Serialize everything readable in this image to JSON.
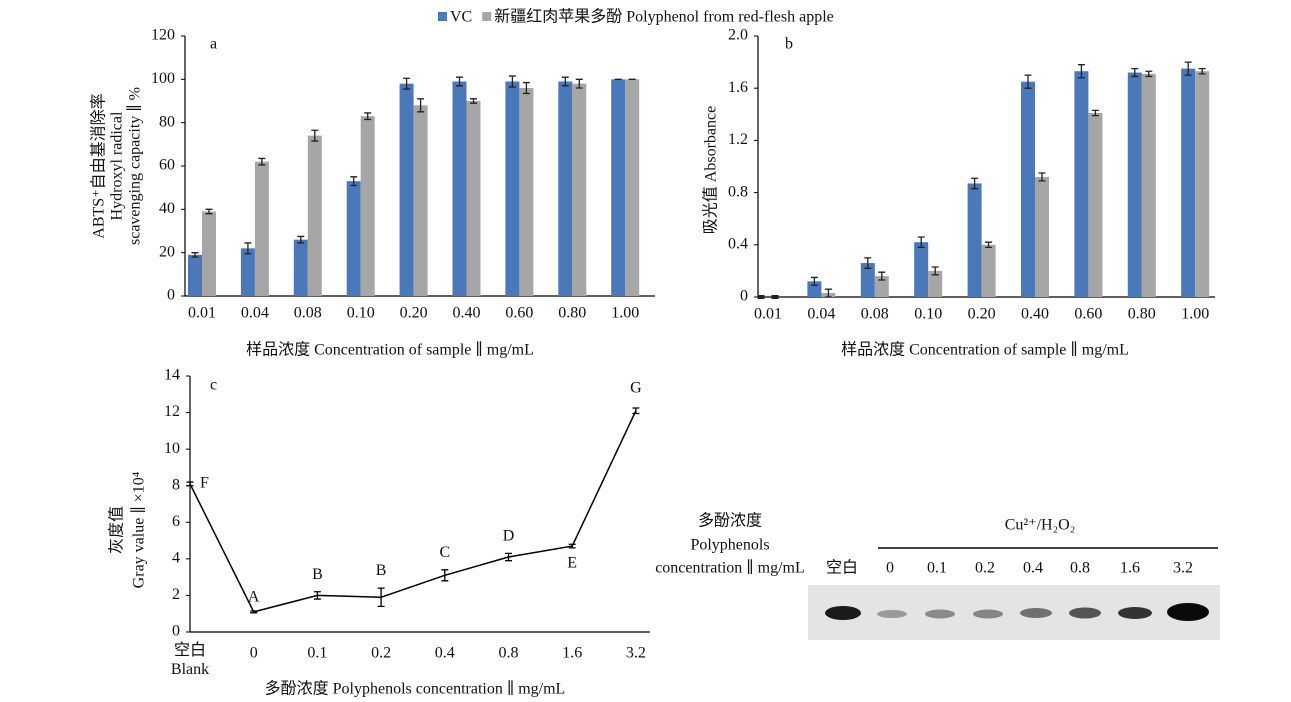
{
  "chart_data": [
    {
      "type": "bar",
      "label": "a",
      "ylabel_lines": [
        "ABTS⁺自由基消除率",
        "Hydroxyl radical",
        "scavenging capacity ∥ %"
      ],
      "xlabel": "样品浓度 Concentration of sample ∥ mg/mL",
      "categories": [
        "0.01",
        "0.04",
        "0.08",
        "0.10",
        "0.20",
        "0.40",
        "0.60",
        "0.80",
        "1.00"
      ],
      "series": [
        {
          "name": "VC",
          "color": "#4a78b8",
          "values": [
            19,
            22,
            26,
            53,
            98,
            99,
            99,
            99,
            100
          ],
          "errors": [
            1,
            2.5,
            1.5,
            2,
            2.5,
            2,
            2.5,
            2,
            0
          ]
        },
        {
          "name": "新疆红肉苹果多酚 Polyphenol from red-flesh apple",
          "color": "#a6a6a6",
          "values": [
            39,
            62,
            74,
            83,
            88,
            90,
            96,
            98,
            100
          ],
          "errors": [
            1,
            1.5,
            2.5,
            1.5,
            3,
            1,
            2.5,
            2,
            0
          ]
        }
      ],
      "ylim": [
        0,
        120
      ],
      "yticks": [
        0,
        20,
        40,
        60,
        80,
        100,
        120
      ]
    },
    {
      "type": "bar",
      "label": "b",
      "ylabel_lines": [
        "吸光值 Absorbance"
      ],
      "xlabel": "样品浓度 Concentration of sample ∥ mg/mL",
      "categories": [
        "0.01",
        "0.04",
        "0.08",
        "0.10",
        "0.20",
        "0.40",
        "0.60",
        "0.80",
        "1.00"
      ],
      "series": [
        {
          "color": "#4a78b8",
          "values": [
            0,
            0.12,
            0.26,
            0.42,
            0.87,
            1.65,
            1.73,
            1.72,
            1.75
          ],
          "errors": [
            0.01,
            0.03,
            0.04,
            0.04,
            0.04,
            0.05,
            0.05,
            0.03,
            0.05
          ]
        },
        {
          "color": "#a6a6a6",
          "values": [
            0,
            0.03,
            0.16,
            0.2,
            0.4,
            0.92,
            1.41,
            1.71,
            1.73
          ],
          "errors": [
            0.01,
            0.03,
            0.03,
            0.03,
            0.02,
            0.03,
            0.02,
            0.02,
            0.02
          ]
        }
      ],
      "ylim": [
        0,
        2
      ],
      "yticks": [
        0,
        0.4,
        0.8,
        1.2,
        1.6,
        {
          "value": 2,
          "label": "2.0"
        }
      ]
    },
    {
      "type": "line",
      "label": "c",
      "ylabel_lines": [
        "灰度值",
        "Gray value ∥ ×10⁴"
      ],
      "xlabel": "多酚浓度 Polyphenols concentration ∥ mg/mL",
      "categories": [
        "空白 Blank",
        "0",
        "0.1",
        "0.2",
        "0.4",
        "0.8",
        "1.6",
        "3.2"
      ],
      "values": [
        8.1,
        1.1,
        2.0,
        1.9,
        3.1,
        4.1,
        4.7,
        12.1
      ],
      "errors": [
        0.1,
        0.05,
        0.2,
        0.5,
        0.3,
        0.2,
        0.1,
        0.15
      ],
      "point_labels": [
        "F",
        "A",
        "B",
        "B",
        "C",
        "D",
        "E",
        "G"
      ],
      "color": "#000000",
      "ylim": [
        0,
        14
      ],
      "yticks": [
        0,
        2,
        4,
        6,
        8,
        10,
        12,
        14
      ]
    }
  ],
  "gel": {
    "title_lines": [
      "多酚浓度",
      "Polyphenols",
      "concentration ∥ mg/mL"
    ],
    "group": "Cu²⁺/H₂O₂",
    "lanes": [
      "空白",
      "0",
      "0.1",
      "0.2",
      "0.4",
      "0.8",
      "1.6",
      "3.2"
    ]
  }
}
